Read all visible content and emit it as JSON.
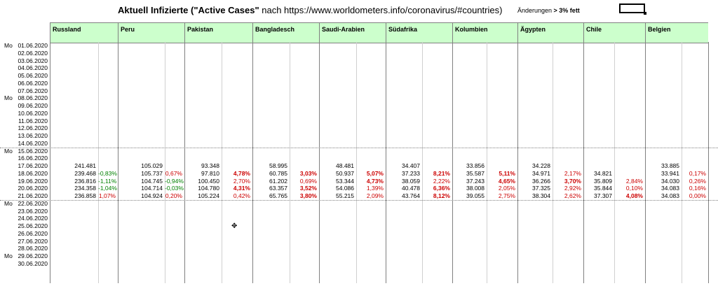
{
  "title": {
    "bold": "Aktuell Infizierte (\"Active Cases\"",
    "normal": " nach https://www.worldometers.info/coronavirus/#countries)"
  },
  "note": {
    "normal": "Änderungen ",
    "bold": "> 3% fett"
  },
  "countries": [
    "Russland",
    "Peru",
    "Pakistan",
    "Bangladesch",
    "Saudi-Arabien",
    "Südafrika",
    "Kolumbien",
    "Ägypten",
    "Chile",
    "Belgien"
  ],
  "rows": [
    {
      "mo": "Mo",
      "date": "01.06.2020"
    },
    {
      "mo": "",
      "date": "02.06.2020"
    },
    {
      "mo": "",
      "date": "03.06.2020"
    },
    {
      "mo": "",
      "date": "04.06.2020"
    },
    {
      "mo": "",
      "date": "05.06.2020"
    },
    {
      "mo": "",
      "date": "06.06.2020"
    },
    {
      "mo": "",
      "date": "07.06.2020"
    },
    {
      "mo": "Mo",
      "date": "08.06.2020"
    },
    {
      "mo": "",
      "date": "09.06.2020"
    },
    {
      "mo": "",
      "date": "10.06.2020"
    },
    {
      "mo": "",
      "date": "11.06.2020"
    },
    {
      "mo": "",
      "date": "12.06.2020"
    },
    {
      "mo": "",
      "date": "13.06.2020"
    },
    {
      "mo": "",
      "date": "14.06.2020"
    },
    {
      "mo": "Mo",
      "date": "15.06.2020"
    },
    {
      "mo": "",
      "date": "16.06.2020"
    },
    {
      "mo": "",
      "date": "17.06.2020",
      "vals": [
        "241.481",
        "",
        "105.029",
        "",
        "93.348",
        "",
        "58.995",
        "",
        "48.481",
        "",
        "34.407",
        "",
        "33.856",
        "",
        "34.228",
        "",
        "",
        "",
        "33.885",
        ""
      ]
    },
    {
      "mo": "",
      "date": "18.06.2020",
      "vals": [
        "239.468",
        "-0,83%",
        "105.737",
        "0,67%",
        "97.810",
        "4,78%",
        "60.785",
        "3,03%",
        "50.937",
        "5,07%",
        "37.233",
        "8,21%",
        "35.587",
        "5,11%",
        "34.971",
        "2,17%",
        "34.821",
        "",
        "33.941",
        "0,17%"
      ]
    },
    {
      "mo": "",
      "date": "19.06.2020",
      "vals": [
        "236.816",
        "-1,11%",
        "104.745",
        "-0,94%",
        "100.450",
        "2,70%",
        "61.202",
        "0,69%",
        "53.344",
        "4,73%",
        "38.059",
        "2,22%",
        "37.243",
        "4,65%",
        "36.266",
        "3,70%",
        "35.809",
        "2,84%",
        "34.030",
        "0,26%"
      ]
    },
    {
      "mo": "",
      "date": "20.06.2020",
      "vals": [
        "234.358",
        "-1,04%",
        "104.714",
        "-0,03%",
        "104.780",
        "4,31%",
        "63.357",
        "3,52%",
        "54.086",
        "1,39%",
        "40.478",
        "6,36%",
        "38.008",
        "2,05%",
        "37.325",
        "2,92%",
        "35.844",
        "0,10%",
        "34.083",
        "0,16%"
      ]
    },
    {
      "mo": "",
      "date": "21.06.2020",
      "vals": [
        "236.858",
        "1,07%",
        "104.924",
        "0,20%",
        "105.224",
        "0,42%",
        "65.765",
        "3,80%",
        "55.215",
        "2,09%",
        "43.764",
        "8,12%",
        "39.055",
        "2,75%",
        "38.304",
        "2,62%",
        "37.307",
        "4,08%",
        "34.083",
        "0,00%"
      ]
    },
    {
      "mo": "Mo",
      "date": "22.06.2020"
    },
    {
      "mo": "",
      "date": "23.06.2020"
    },
    {
      "mo": "",
      "date": "24.06.2020"
    },
    {
      "mo": "",
      "date": "25.06.2020"
    },
    {
      "mo": "",
      "date": "26.06.2020"
    },
    {
      "mo": "",
      "date": "27.06.2020"
    },
    {
      "mo": "",
      "date": "28.06.2020"
    },
    {
      "mo": "Mo",
      "date": "29.06.2020"
    },
    {
      "mo": "",
      "date": "30.06.2020"
    }
  ],
  "colors": {
    "header_bg": "#ccffcc",
    "neg": "#008000",
    "pos": "#cc0000"
  }
}
